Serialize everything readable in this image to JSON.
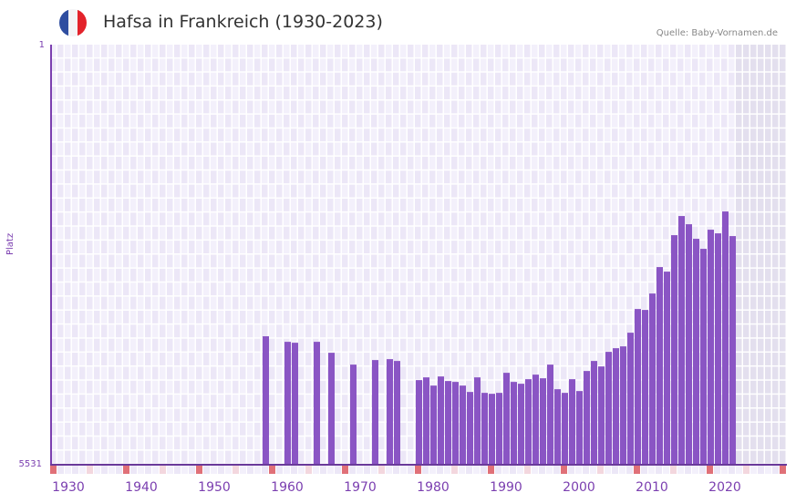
{
  "header": {
    "title": "Hafsa in Frankreich (1930-2023)",
    "source": "Quelle: Baby-Vornamen.de",
    "flag_icon": "france-flag-icon",
    "flag_colors": [
      "#2f4ea0",
      "#f4f4f6",
      "#e3232b"
    ]
  },
  "colors": {
    "bar": "#8a55c4",
    "axis": "#7b3fb0",
    "grid_bg_a": "#f3f0fb",
    "grid_bg_b": "#ece7f7",
    "future_bg": "#e3dfee",
    "marker_decade": "#e07078",
    "marker_mid": "#f3d7de"
  },
  "chart_data": {
    "type": "bar",
    "title": "Hafsa in Frankreich (1930-2023)",
    "xlabel": "",
    "ylabel": "Platz",
    "y_inverted": true,
    "ylim": [
      1,
      5531
    ],
    "y_ticks": [
      "1",
      "5531"
    ],
    "x_range": [
      1928,
      2028
    ],
    "x_ticks": [
      "1930",
      "1940",
      "1950",
      "1960",
      "1970",
      "1980",
      "1990",
      "2000",
      "2010",
      "2020"
    ],
    "grid": true,
    "legend": null,
    "categories": [
      1957,
      1960,
      1961,
      1964,
      1966,
      1969,
      1972,
      1974,
      1975,
      1978,
      1979,
      1980,
      1981,
      1982,
      1983,
      1984,
      1985,
      1986,
      1987,
      1988,
      1989,
      1990,
      1991,
      1992,
      1993,
      1994,
      1995,
      1996,
      1997,
      1998,
      1999,
      2000,
      2001,
      2002,
      2003,
      2004,
      2005,
      2006,
      2007,
      2008,
      2009,
      2010,
      2011,
      2012,
      2013,
      2014,
      2015,
      2016,
      2017,
      2018,
      2019,
      2020,
      2021
    ],
    "values": [
      3840,
      3913,
      3925,
      3913,
      4057,
      4213,
      4153,
      4141,
      4165,
      4417,
      4381,
      4489,
      4369,
      4429,
      4441,
      4489,
      4573,
      4381,
      4585,
      4597,
      4585,
      4321,
      4441,
      4465,
      4405,
      4345,
      4393,
      4213,
      4537,
      4585,
      4405,
      4561,
      4297,
      4165,
      4237,
      4045,
      3997,
      3973,
      3793,
      3481,
      3493,
      3277,
      2929,
      2989,
      2509,
      2257,
      2365,
      2557,
      2689,
      2437,
      2485,
      2197,
      2521
    ],
    "shaded_future_from": 2022
  }
}
